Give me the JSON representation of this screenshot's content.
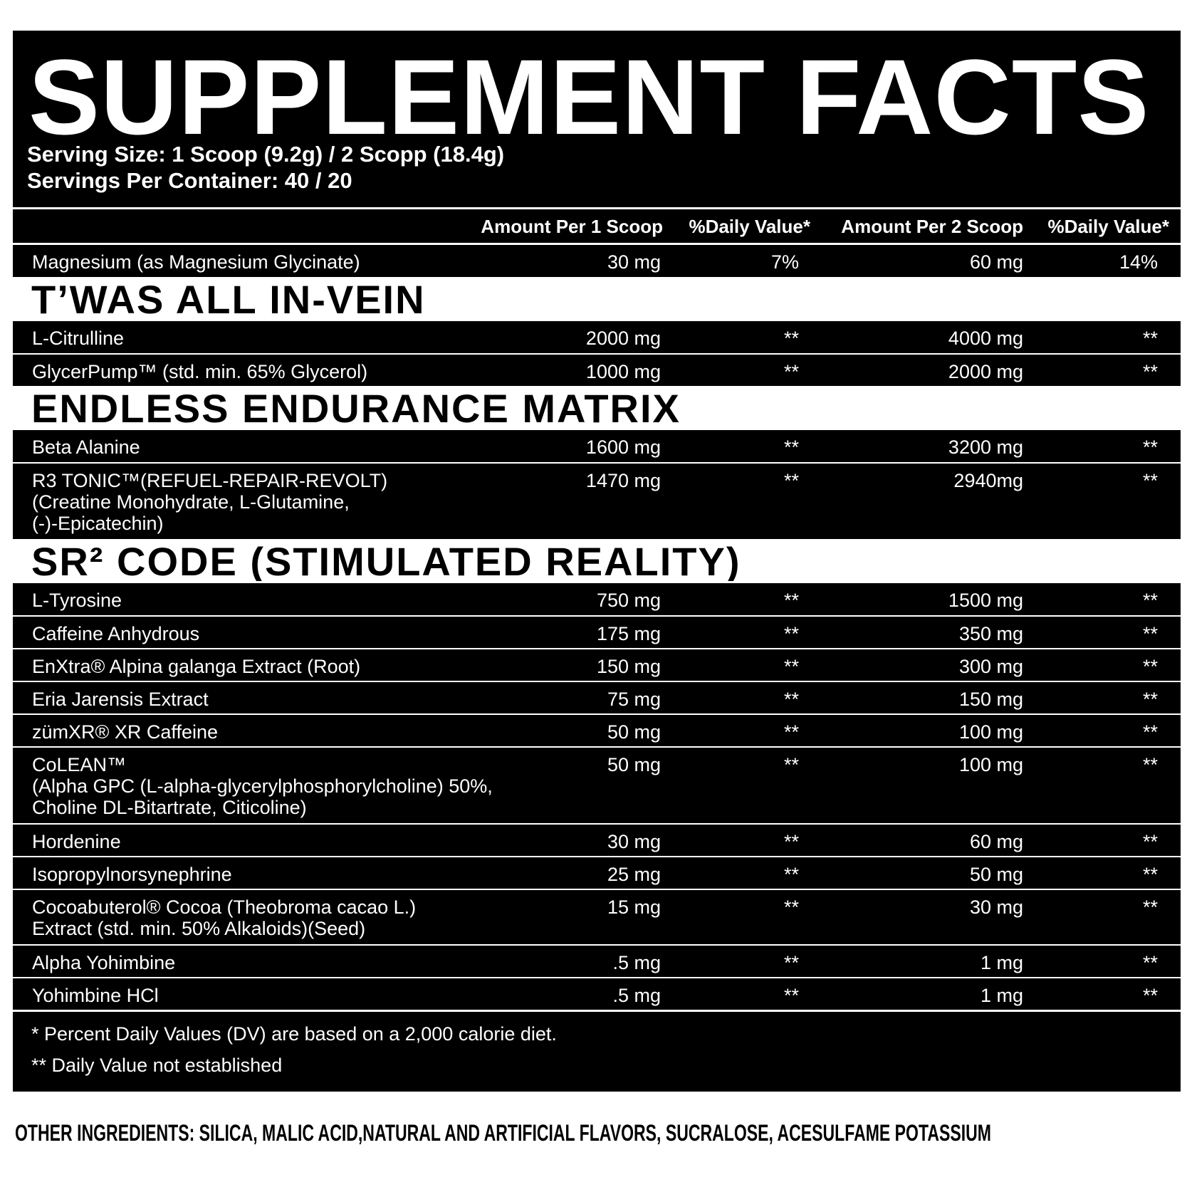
{
  "header": {
    "title": "SUPPLEMENT FACTS",
    "serving_size": "Serving Size: 1 Scoop (9.2g) / 2 Scopp (18.4g)",
    "servings_per_container": "Servings Per Container: 40 / 20"
  },
  "table": {
    "columns": [
      "Amount Per 1 Scoop",
      "%Daily Value*",
      "Amount Per 2 Scoop",
      "%Daily Value*"
    ],
    "top_rows": [
      {
        "name_lines": [
          "Magnesium (as Magnesium Glycinate)"
        ],
        "cells": [
          "30 mg",
          "7%",
          "60 mg",
          "14%"
        ]
      }
    ],
    "sections": [
      {
        "title": "T’WAS ALL IN-VEIN",
        "rows": [
          {
            "name_lines": [
              "L-Citrulline"
            ],
            "cells": [
              "2000 mg",
              "**",
              "4000 mg",
              "**"
            ]
          },
          {
            "name_lines": [
              "GlycerPump™ (std. min. 65% Glycerol)"
            ],
            "cells": [
              "1000 mg",
              "**",
              "2000 mg",
              "**"
            ]
          }
        ]
      },
      {
        "title": "ENDLESS ENDURANCE MATRIX",
        "rows": [
          {
            "name_lines": [
              "Beta Alanine"
            ],
            "cells": [
              "1600 mg",
              "**",
              "3200 mg",
              "**"
            ]
          },
          {
            "name_lines": [
              "R3 TONIC™(REFUEL-REPAIR-REVOLT)",
              "(Creatine Monohydrate, L-Glutamine,",
              "(-)-Epicatechin)"
            ],
            "cells": [
              "1470 mg",
              "**",
              "2940mg",
              "**"
            ]
          }
        ]
      },
      {
        "title": "SR² CODE (STIMULATED REALITY)",
        "rows": [
          {
            "name_lines": [
              "L-Tyrosine"
            ],
            "cells": [
              "750 mg",
              "**",
              "1500 mg",
              "**"
            ]
          },
          {
            "name_lines": [
              "Caffeine Anhydrous"
            ],
            "cells": [
              "175 mg",
              "**",
              "350 mg",
              "**"
            ]
          },
          {
            "name_lines": [
              "EnXtra® Alpina galanga Extract (Root)"
            ],
            "cells": [
              "150 mg",
              "**",
              "300 mg",
              "**"
            ]
          },
          {
            "name_lines": [
              "Eria Jarensis Extract"
            ],
            "cells": [
              "75 mg",
              "**",
              "150 mg",
              "**"
            ]
          },
          {
            "name_lines": [
              "zümXR® XR Caffeine"
            ],
            "cells": [
              "50 mg",
              "**",
              "100 mg",
              "**"
            ]
          },
          {
            "name_lines": [
              "CoLEAN™",
              "(Alpha GPC (L-alpha-glycerylphosphorylcholine) 50%,",
              "Choline DL-Bitartrate, Citicoline)"
            ],
            "cells": [
              "50 mg",
              "**",
              "100 mg",
              "**"
            ]
          },
          {
            "name_lines": [
              "Hordenine"
            ],
            "cells": [
              "30 mg",
              "**",
              "60 mg",
              "**"
            ]
          },
          {
            "name_lines": [
              "Isopropylnorsynephrine"
            ],
            "cells": [
              "25 mg",
              "**",
              "50 mg",
              "**"
            ]
          },
          {
            "name_lines": [
              "Cocoabuterol® Cocoa (Theobroma cacao L.)",
              "Extract (std. min. 50% Alkaloids)(Seed)"
            ],
            "cells": [
              "15 mg",
              "**",
              "30 mg",
              "**"
            ]
          },
          {
            "name_lines": [
              "Alpha Yohimbine"
            ],
            "cells": [
              ".5 mg",
              "**",
              "1 mg",
              "**"
            ]
          },
          {
            "name_lines": [
              "Yohimbine HCl"
            ],
            "cells": [
              ".5 mg",
              "**",
              "1 mg",
              "**"
            ]
          }
        ]
      }
    ]
  },
  "footnotes": [
    "* Percent Daily Values (DV) are based on a 2,000 calorie diet.",
    "** Daily Value not established"
  ],
  "other_ingredients": "OTHER INGREDIENTS: SILICA, MALIC ACID,NATURAL AND ARTIFICIAL FLAVORS, SUCRALOSE, ACESULFAME POTASSIUM"
}
